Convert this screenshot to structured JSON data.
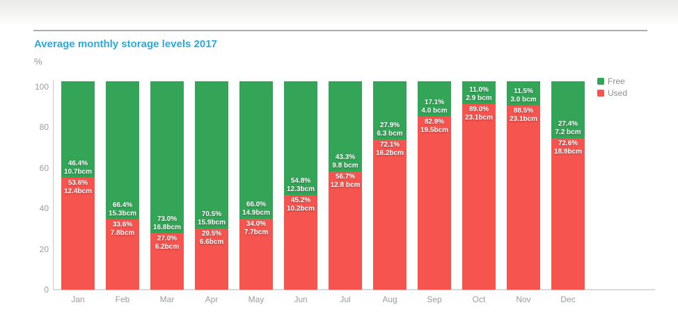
{
  "header": {
    "title": "Average monthly storage levels 2017",
    "unit_label": "%",
    "title_color": "#29a9e0"
  },
  "legend": {
    "position": "top-right",
    "items": [
      {
        "label": "Free",
        "color": "#34a457"
      },
      {
        "label": "Used",
        "color": "#f5544f"
      }
    ]
  },
  "chart_data": {
    "type": "bar",
    "variant": "stacked-column",
    "title": "Average monthly storage levels 2017",
    "xlabel": "",
    "ylabel": "%",
    "ylim": [
      0,
      100
    ],
    "yticks": [
      0,
      20,
      40,
      60,
      80,
      100
    ],
    "grid": false,
    "legend_position": "top-right",
    "categories": [
      "Jan",
      "Feb",
      "Mar",
      "Apr",
      "May",
      "Jun",
      "Jul",
      "Aug",
      "Sep",
      "Oct",
      "Nov",
      "Dec"
    ],
    "series": [
      {
        "name": "Free",
        "color": "#34a457",
        "pct": [
          46.4,
          66.4,
          73.0,
          70.5,
          66.0,
          54.8,
          43.3,
          27.9,
          17.1,
          11.0,
          11.5,
          27.4
        ],
        "bcm": [
          10.7,
          15.3,
          16.8,
          15.9,
          14.9,
          12.3,
          9.8,
          6.3,
          4.0,
          2.9,
          3.0,
          7.2
        ]
      },
      {
        "name": "Used",
        "color": "#f5544f",
        "pct": [
          53.6,
          33.6,
          27.0,
          29.5,
          34.0,
          45.2,
          56.7,
          72.1,
          82.9,
          89.0,
          88.5,
          72.6
        ],
        "bcm": [
          12.4,
          7.8,
          6.2,
          6.6,
          7.7,
          10.2,
          12.8,
          16.2,
          19.5,
          23.1,
          23.1,
          18.9
        ]
      }
    ],
    "bar_labels": [
      {
        "month": "Jan",
        "free": [
          "46.4%",
          "10.7bcm"
        ],
        "used": [
          "53.6%",
          "12.4bcm"
        ]
      },
      {
        "month": "Feb",
        "free": [
          "66.4%",
          "15.3bcm"
        ],
        "used": [
          "33.6%",
          "7.8bcm"
        ]
      },
      {
        "month": "Mar",
        "free": [
          "73.0%",
          "16.8bcm"
        ],
        "used": [
          "27.0%",
          "6.2bcm"
        ]
      },
      {
        "month": "Apr",
        "free": [
          "70.5%",
          "15.9bcm"
        ],
        "used": [
          "29.5%",
          "6.6bcm"
        ]
      },
      {
        "month": "May",
        "free": [
          "66.0%",
          "14.9bcm"
        ],
        "used": [
          "34.0%",
          "7.7bcm"
        ]
      },
      {
        "month": "Jun",
        "free": [
          "54.8%",
          "12.3bcm"
        ],
        "used": [
          "45.2%",
          "10.2bcm"
        ]
      },
      {
        "month": "Jul",
        "free": [
          "43.3%",
          "9.8 bcm"
        ],
        "used": [
          "56.7%",
          "12.8 bcm"
        ]
      },
      {
        "month": "Aug",
        "free": [
          "27.9%",
          "6.3 bcm"
        ],
        "used": [
          "72.1%",
          "16.2bcm"
        ]
      },
      {
        "month": "Sep",
        "free": [
          "17.1%",
          "4.0 bcm"
        ],
        "used": [
          "82.9%",
          "19.5bcm"
        ]
      },
      {
        "month": "Oct",
        "free": [
          "11.0%",
          "2.9 bcm"
        ],
        "used": [
          "89.0%",
          "23.1bcm"
        ]
      },
      {
        "month": "Nov",
        "free": [
          "11.5%",
          "3.0 bcm"
        ],
        "used": [
          "88.5%",
          "23.1bcm"
        ]
      },
      {
        "month": "Dec",
        "free": [
          "27.4%",
          "7.2 bcm"
        ],
        "used": [
          "72.6%",
          "18.9bcm"
        ]
      }
    ]
  }
}
